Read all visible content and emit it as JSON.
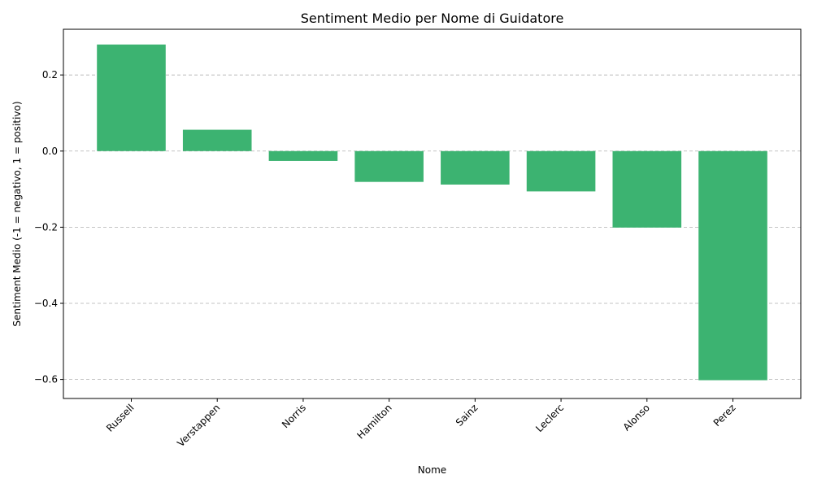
{
  "chart_data": {
    "type": "bar",
    "title": "Sentiment Medio per Nome di Guidatore",
    "xlabel": "Nome",
    "ylabel": "Sentiment Medio (-1 = negativo, 1 = positivo)",
    "categories": [
      "Russell",
      "Verstappen",
      "Norris",
      "Hamilton",
      "Sainz",
      "Leclerc",
      "Alonso",
      "Perez"
    ],
    "values": [
      0.28,
      0.056,
      -0.026,
      -0.081,
      -0.088,
      -0.106,
      -0.201,
      -0.602
    ],
    "ylim": [
      -0.65,
      0.32
    ],
    "yticks": [
      0.2,
      0.0,
      -0.2,
      -0.4,
      -0.6
    ],
    "ytick_labels": [
      "0.2",
      "0.0",
      "−0.2",
      "−0.4",
      "−0.6"
    ],
    "bar_color": "#3cb371",
    "grid": "y-dashed",
    "legend": "none"
  }
}
